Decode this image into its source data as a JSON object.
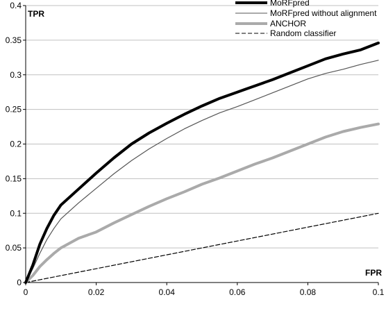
{
  "chart_data": {
    "type": "line",
    "xlabel": "FPR",
    "ylabel": "TPR",
    "xlim": [
      0,
      0.1
    ],
    "ylim": [
      0,
      0.4
    ],
    "x_ticks": [
      0,
      0.02,
      0.04,
      0.06,
      0.08,
      0.1
    ],
    "x_tick_labels": [
      "0",
      "0.02",
      "0.04",
      "0.06",
      "0.08",
      "0.1"
    ],
    "y_ticks": [
      0,
      0.05,
      0.1,
      0.15,
      0.2,
      0.25,
      0.3,
      0.35,
      0.4
    ],
    "y_tick_labels": [
      "0",
      "0.05",
      "0.1",
      "0.15",
      "0.2",
      "0.25",
      "0.3",
      "0.35",
      "0.4"
    ],
    "grid": "horizontal",
    "legend_position": "top-right",
    "series": [
      {
        "name": "MoRFpred",
        "color": "#000000",
        "style": "solid-thick",
        "x": [
          0,
          0.002,
          0.004,
          0.006,
          0.008,
          0.01,
          0.015,
          0.02,
          0.025,
          0.03,
          0.035,
          0.04,
          0.045,
          0.05,
          0.055,
          0.06,
          0.065,
          0.07,
          0.075,
          0.08,
          0.085,
          0.09,
          0.095,
          0.1
        ],
        "y": [
          0,
          0.025,
          0.055,
          0.078,
          0.097,
          0.112,
          0.135,
          0.158,
          0.18,
          0.2,
          0.216,
          0.23,
          0.243,
          0.255,
          0.266,
          0.275,
          0.284,
          0.293,
          0.303,
          0.313,
          0.323,
          0.33,
          0.336,
          0.346
        ]
      },
      {
        "name": "MoRFpred without alignment",
        "color": "#555555",
        "style": "solid-thin",
        "x": [
          0,
          0.002,
          0.004,
          0.006,
          0.008,
          0.01,
          0.015,
          0.02,
          0.025,
          0.03,
          0.035,
          0.04,
          0.045,
          0.05,
          0.055,
          0.06,
          0.065,
          0.07,
          0.075,
          0.08,
          0.085,
          0.09,
          0.095,
          0.1
        ],
        "y": [
          0,
          0.02,
          0.042,
          0.062,
          0.078,
          0.092,
          0.115,
          0.136,
          0.157,
          0.176,
          0.193,
          0.208,
          0.222,
          0.234,
          0.245,
          0.254,
          0.264,
          0.274,
          0.284,
          0.294,
          0.302,
          0.308,
          0.315,
          0.321
        ]
      },
      {
        "name": "ANCHOR",
        "color": "#aaaaaa",
        "style": "solid-thick",
        "x": [
          0,
          0.002,
          0.004,
          0.006,
          0.008,
          0.01,
          0.015,
          0.02,
          0.025,
          0.03,
          0.035,
          0.04,
          0.045,
          0.05,
          0.055,
          0.06,
          0.065,
          0.07,
          0.075,
          0.08,
          0.085,
          0.09,
          0.095,
          0.1
        ],
        "y": [
          0,
          0.01,
          0.023,
          0.033,
          0.042,
          0.05,
          0.064,
          0.073,
          0.086,
          0.098,
          0.11,
          0.121,
          0.131,
          0.142,
          0.151,
          0.161,
          0.171,
          0.18,
          0.19,
          0.2,
          0.21,
          0.218,
          0.224,
          0.229
        ]
      },
      {
        "name": "Random classifier",
        "color": "#000000",
        "style": "dashed",
        "x": [
          0,
          0.1
        ],
        "y": [
          0,
          0.1
        ]
      }
    ]
  }
}
